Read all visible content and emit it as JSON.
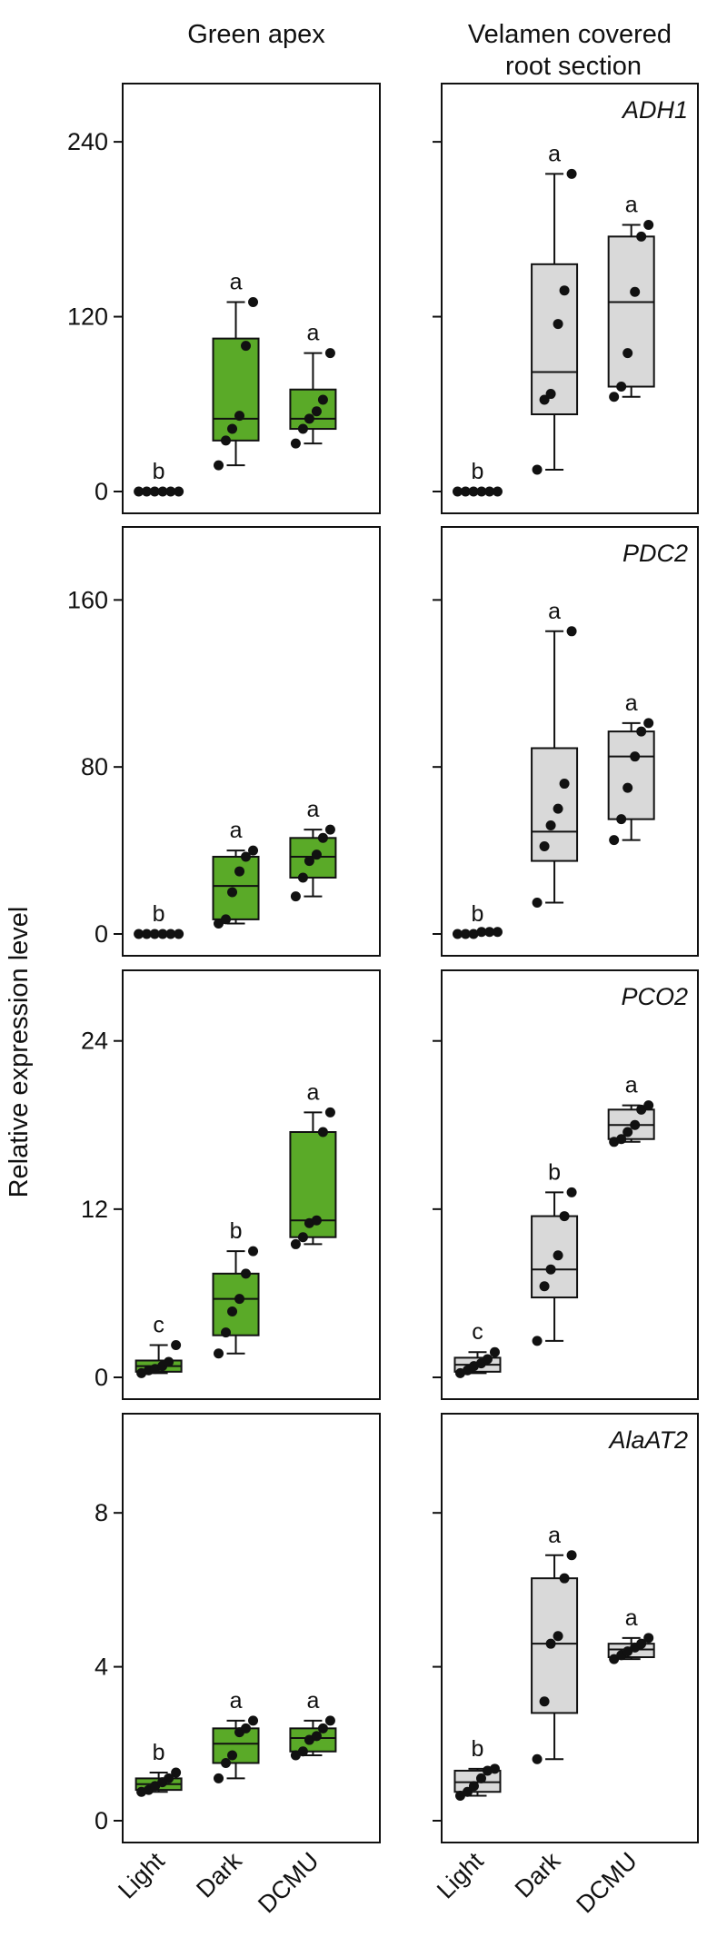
{
  "figure": {
    "ylabel": "Relative expression level",
    "columns": [
      "Green apex",
      "Velamen covered\nroot section"
    ],
    "categories": [
      "Light",
      "Dark",
      "DCMU"
    ],
    "colors": {
      "green_apex_fill": "#5aaa28",
      "root_fill": "#d9d9d9",
      "ink": "#111111"
    }
  },
  "chart_data": [
    {
      "type": "box",
      "panel": "ADH1 - Green apex",
      "column": "Green apex",
      "gene": "",
      "ylim": [
        0,
        270
      ],
      "yticks": [
        0,
        120,
        240
      ],
      "categories": [
        "Light",
        "Dark",
        "DCMU"
      ],
      "boxes": [
        {
          "category": "Light",
          "min": 0,
          "q1": 0,
          "median": 0,
          "q3": 0,
          "max": 0,
          "points": [
            0,
            0,
            0,
            0,
            0,
            0
          ],
          "letter": "b"
        },
        {
          "category": "Dark",
          "min": 18,
          "q1": 35,
          "median": 50,
          "q3": 105,
          "max": 130,
          "points": [
            18,
            35,
            43,
            52,
            100,
            130
          ],
          "letter": "a"
        },
        {
          "category": "DCMU",
          "min": 33,
          "q1": 43,
          "median": 50,
          "q3": 70,
          "max": 95,
          "points": [
            33,
            43,
            50,
            55,
            63,
            95
          ],
          "letter": "a"
        }
      ]
    },
    {
      "type": "box",
      "panel": "ADH1 - Velamen covered root section",
      "column": "Velamen covered root section",
      "gene": "ADH1",
      "ylim": [
        0,
        270
      ],
      "yticks": [
        0,
        120,
        240
      ],
      "categories": [
        "Light",
        "Dark",
        "DCMU"
      ],
      "boxes": [
        {
          "category": "Light",
          "min": 0,
          "q1": 0,
          "median": 0,
          "q3": 0,
          "max": 0,
          "points": [
            0,
            0,
            0,
            0,
            0,
            0
          ],
          "letter": "b"
        },
        {
          "category": "Dark",
          "min": 15,
          "q1": 53,
          "median": 82,
          "q3": 156,
          "max": 218,
          "points": [
            15,
            63,
            67,
            115,
            138,
            218
          ],
          "letter": "a"
        },
        {
          "category": "DCMU",
          "min": 65,
          "q1": 72,
          "median": 130,
          "q3": 175,
          "max": 183,
          "points": [
            65,
            72,
            95,
            137,
            175,
            183
          ],
          "letter": "a"
        }
      ]
    },
    {
      "type": "box",
      "panel": "PDC2 - Green apex",
      "column": "Green apex",
      "gene": "",
      "ylim": [
        0,
        188
      ],
      "yticks": [
        0,
        80,
        160
      ],
      "categories": [
        "Light",
        "Dark",
        "DCMU"
      ],
      "boxes": [
        {
          "category": "Light",
          "min": 0,
          "q1": 0,
          "median": 0,
          "q3": 0,
          "max": 0,
          "points": [
            0,
            0,
            0,
            0,
            0,
            0
          ],
          "letter": "b"
        },
        {
          "category": "Dark",
          "min": 5,
          "q1": 7,
          "median": 23,
          "q3": 37,
          "max": 40,
          "points": [
            5,
            7,
            20,
            30,
            37,
            40
          ],
          "letter": "a"
        },
        {
          "category": "DCMU",
          "min": 18,
          "q1": 27,
          "median": 37,
          "q3": 46,
          "max": 50,
          "points": [
            18,
            27,
            35,
            38,
            46,
            50
          ],
          "letter": "a"
        }
      ]
    },
    {
      "type": "box",
      "panel": "PDC2 - Velamen covered root section",
      "column": "Velamen covered root section",
      "gene": "PDC2",
      "ylim": [
        0,
        188
      ],
      "yticks": [
        0,
        80,
        160
      ],
      "categories": [
        "Light",
        "Dark",
        "DCMU"
      ],
      "boxes": [
        {
          "category": "Light",
          "min": 0,
          "q1": 0,
          "median": 0,
          "q3": 0,
          "max": 0,
          "points": [
            0,
            0,
            0,
            1,
            1,
            1
          ],
          "letter": "b"
        },
        {
          "category": "Dark",
          "min": 15,
          "q1": 35,
          "median": 49,
          "q3": 89,
          "max": 145,
          "points": [
            15,
            42,
            52,
            60,
            72,
            145
          ],
          "letter": "a"
        },
        {
          "category": "DCMU",
          "min": 45,
          "q1": 55,
          "median": 85,
          "q3": 97,
          "max": 101,
          "points": [
            45,
            55,
            70,
            85,
            97,
            101
          ],
          "letter": "a"
        }
      ]
    },
    {
      "type": "box",
      "panel": "PCO2 - Green apex",
      "column": "Green apex",
      "gene": "",
      "ylim": [
        0,
        28
      ],
      "yticks": [
        0,
        12,
        24
      ],
      "categories": [
        "Light",
        "Dark",
        "DCMU"
      ],
      "boxes": [
        {
          "category": "Light",
          "min": 0.3,
          "q1": 0.4,
          "median": 0.8,
          "q3": 1.2,
          "max": 2.3,
          "points": [
            0.3,
            0.5,
            0.6,
            0.8,
            1.1,
            2.3
          ],
          "letter": "c"
        },
        {
          "category": "Dark",
          "min": 1.7,
          "q1": 3,
          "median": 5.6,
          "q3": 7.4,
          "max": 9,
          "points": [
            1.7,
            3.2,
            4.7,
            5.6,
            7.4,
            9
          ],
          "letter": "b"
        },
        {
          "category": "DCMU",
          "min": 9.5,
          "q1": 10,
          "median": 11.2,
          "q3": 17.5,
          "max": 18.9,
          "points": [
            9.5,
            10,
            11,
            11.2,
            17.5,
            18.9
          ],
          "letter": "a"
        }
      ]
    },
    {
      "type": "box",
      "panel": "PCO2 - Velamen covered root section",
      "column": "Velamen covered root section",
      "gene": "PCO2",
      "ylim": [
        0,
        28
      ],
      "yticks": [
        0,
        12,
        24
      ],
      "categories": [
        "Light",
        "Dark",
        "DCMU"
      ],
      "boxes": [
        {
          "category": "Light",
          "min": 0.3,
          "q1": 0.4,
          "median": 0.9,
          "q3": 1.4,
          "max": 1.8,
          "points": [
            0.3,
            0.5,
            0.8,
            1.0,
            1.3,
            1.8
          ],
          "letter": "c"
        },
        {
          "category": "Dark",
          "min": 2.6,
          "q1": 5.7,
          "median": 7.7,
          "q3": 11.5,
          "max": 13.2,
          "points": [
            2.6,
            6.5,
            7.7,
            8.7,
            11.5,
            13.2
          ],
          "letter": "b"
        },
        {
          "category": "DCMU",
          "min": 16.8,
          "q1": 17,
          "median": 18,
          "q3": 19.1,
          "max": 19.4,
          "points": [
            16.8,
            17,
            17.5,
            18,
            19.1,
            19.4
          ],
          "letter": "a"
        }
      ]
    },
    {
      "type": "box",
      "panel": "AlaAT2 - Green apex",
      "column": "Green apex",
      "gene": "",
      "ylim": [
        0,
        10.2
      ],
      "yticks": [
        0,
        4,
        8
      ],
      "categories": [
        "Light",
        "Dark",
        "DCMU"
      ],
      "boxes": [
        {
          "category": "Light",
          "min": 0.75,
          "q1": 0.8,
          "median": 0.95,
          "q3": 1.1,
          "max": 1.25,
          "points": [
            0.75,
            0.8,
            0.9,
            1.0,
            1.1,
            1.25
          ],
          "letter": "b"
        },
        {
          "category": "Dark",
          "min": 1.1,
          "q1": 1.5,
          "median": 2.0,
          "q3": 2.4,
          "max": 2.6,
          "points": [
            1.1,
            1.5,
            1.7,
            2.3,
            2.4,
            2.6
          ],
          "letter": "a"
        },
        {
          "category": "DCMU",
          "min": 1.7,
          "q1": 1.8,
          "median": 2.15,
          "q3": 2.4,
          "max": 2.6,
          "points": [
            1.7,
            1.8,
            2.1,
            2.2,
            2.4,
            2.6
          ],
          "letter": "a"
        }
      ]
    },
    {
      "type": "box",
      "panel": "AlaAT2 - Velamen covered root section",
      "column": "Velamen covered root section",
      "gene": "AlaAT2",
      "ylim": [
        0,
        10.2
      ],
      "yticks": [
        0,
        4,
        8
      ],
      "categories": [
        "Light",
        "Dark",
        "DCMU"
      ],
      "boxes": [
        {
          "category": "Light",
          "min": 0.65,
          "q1": 0.75,
          "median": 1.0,
          "q3": 1.3,
          "max": 1.35,
          "points": [
            0.65,
            0.75,
            0.9,
            1.1,
            1.3,
            1.35
          ],
          "letter": "b"
        },
        {
          "category": "Dark",
          "min": 1.6,
          "q1": 2.8,
          "median": 4.6,
          "q3": 6.3,
          "max": 6.9,
          "points": [
            1.6,
            3.1,
            4.6,
            4.8,
            6.3,
            6.9
          ],
          "letter": "a"
        },
        {
          "category": "DCMU",
          "min": 4.2,
          "q1": 4.25,
          "median": 4.45,
          "q3": 4.6,
          "max": 4.75,
          "points": [
            4.2,
            4.3,
            4.4,
            4.5,
            4.6,
            4.75
          ],
          "letter": "a"
        }
      ]
    }
  ]
}
